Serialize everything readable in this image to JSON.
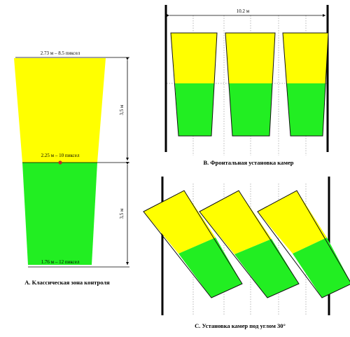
{
  "colors": {
    "yellow": "#ffff00",
    "green": "#22ee22",
    "outline": "#111111",
    "dim_line": "#000000",
    "grid_dotted": "#9a9a9a",
    "pole": "#000000",
    "center_dot": "#c0282b"
  },
  "panel_a": {
    "top_label": "2.73 м – 8.5 пиксел",
    "mid_label": "2.25 м – 10 пиксел",
    "bottom_label": "1.76 м – 12 пиксел",
    "upper_height": "3,5 м",
    "lower_height": "3,5 м",
    "caption": "А. Классическая зона контроля"
  },
  "panel_b": {
    "width_label": "10.2 м",
    "caption": "B. Фронтальная установка камер",
    "zone_count": 3
  },
  "panel_c": {
    "caption": "С. Установка камер под углом 30°",
    "angle_deg": 30,
    "zone_count": 3
  }
}
